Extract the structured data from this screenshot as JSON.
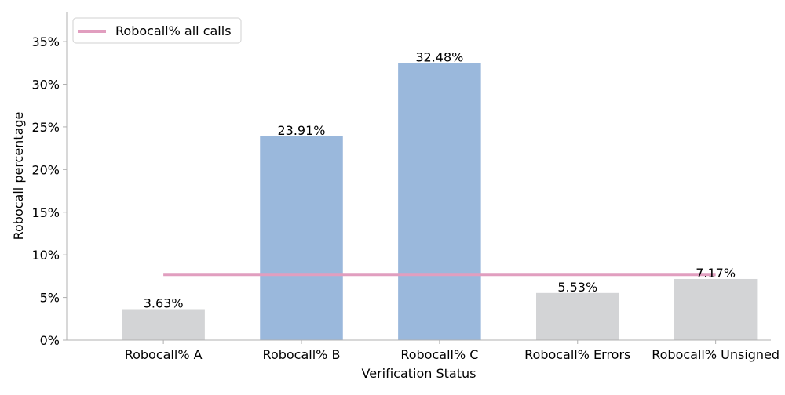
{
  "chart_data": {
    "type": "bar",
    "categories": [
      "Robocall% A",
      "Robocall% B",
      "Robocall% C",
      "Robocall% Errors",
      "Robocall% Unsigned"
    ],
    "values": [
      3.63,
      23.91,
      32.48,
      5.53,
      7.17
    ],
    "data_labels": [
      "3.63%",
      "23.91%",
      "32.48%",
      "5.53%",
      "7.17%"
    ],
    "bar_colors": [
      "#d3d4d6",
      "#9ab8dc",
      "#9ab8dc",
      "#d3d4d6",
      "#d3d4d6"
    ],
    "reference_line": {
      "name": "Robocall% all calls",
      "value": 7.7,
      "color": "#e19ebf"
    },
    "xlabel": "Verification Status",
    "ylabel": "Robocall percentage",
    "ylim": [
      0,
      38.5
    ],
    "yticks": [
      0,
      5,
      10,
      15,
      20,
      25,
      30,
      35
    ],
    "ytick_labels": [
      "0%",
      "5%",
      "10%",
      "15%",
      "20%",
      "25%",
      "30%",
      "35%"
    ],
    "grid": false,
    "legend": {
      "placement": "top-left",
      "entries": [
        "Robocall% all calls"
      ]
    },
    "axis_color": "#b0b0b0"
  }
}
